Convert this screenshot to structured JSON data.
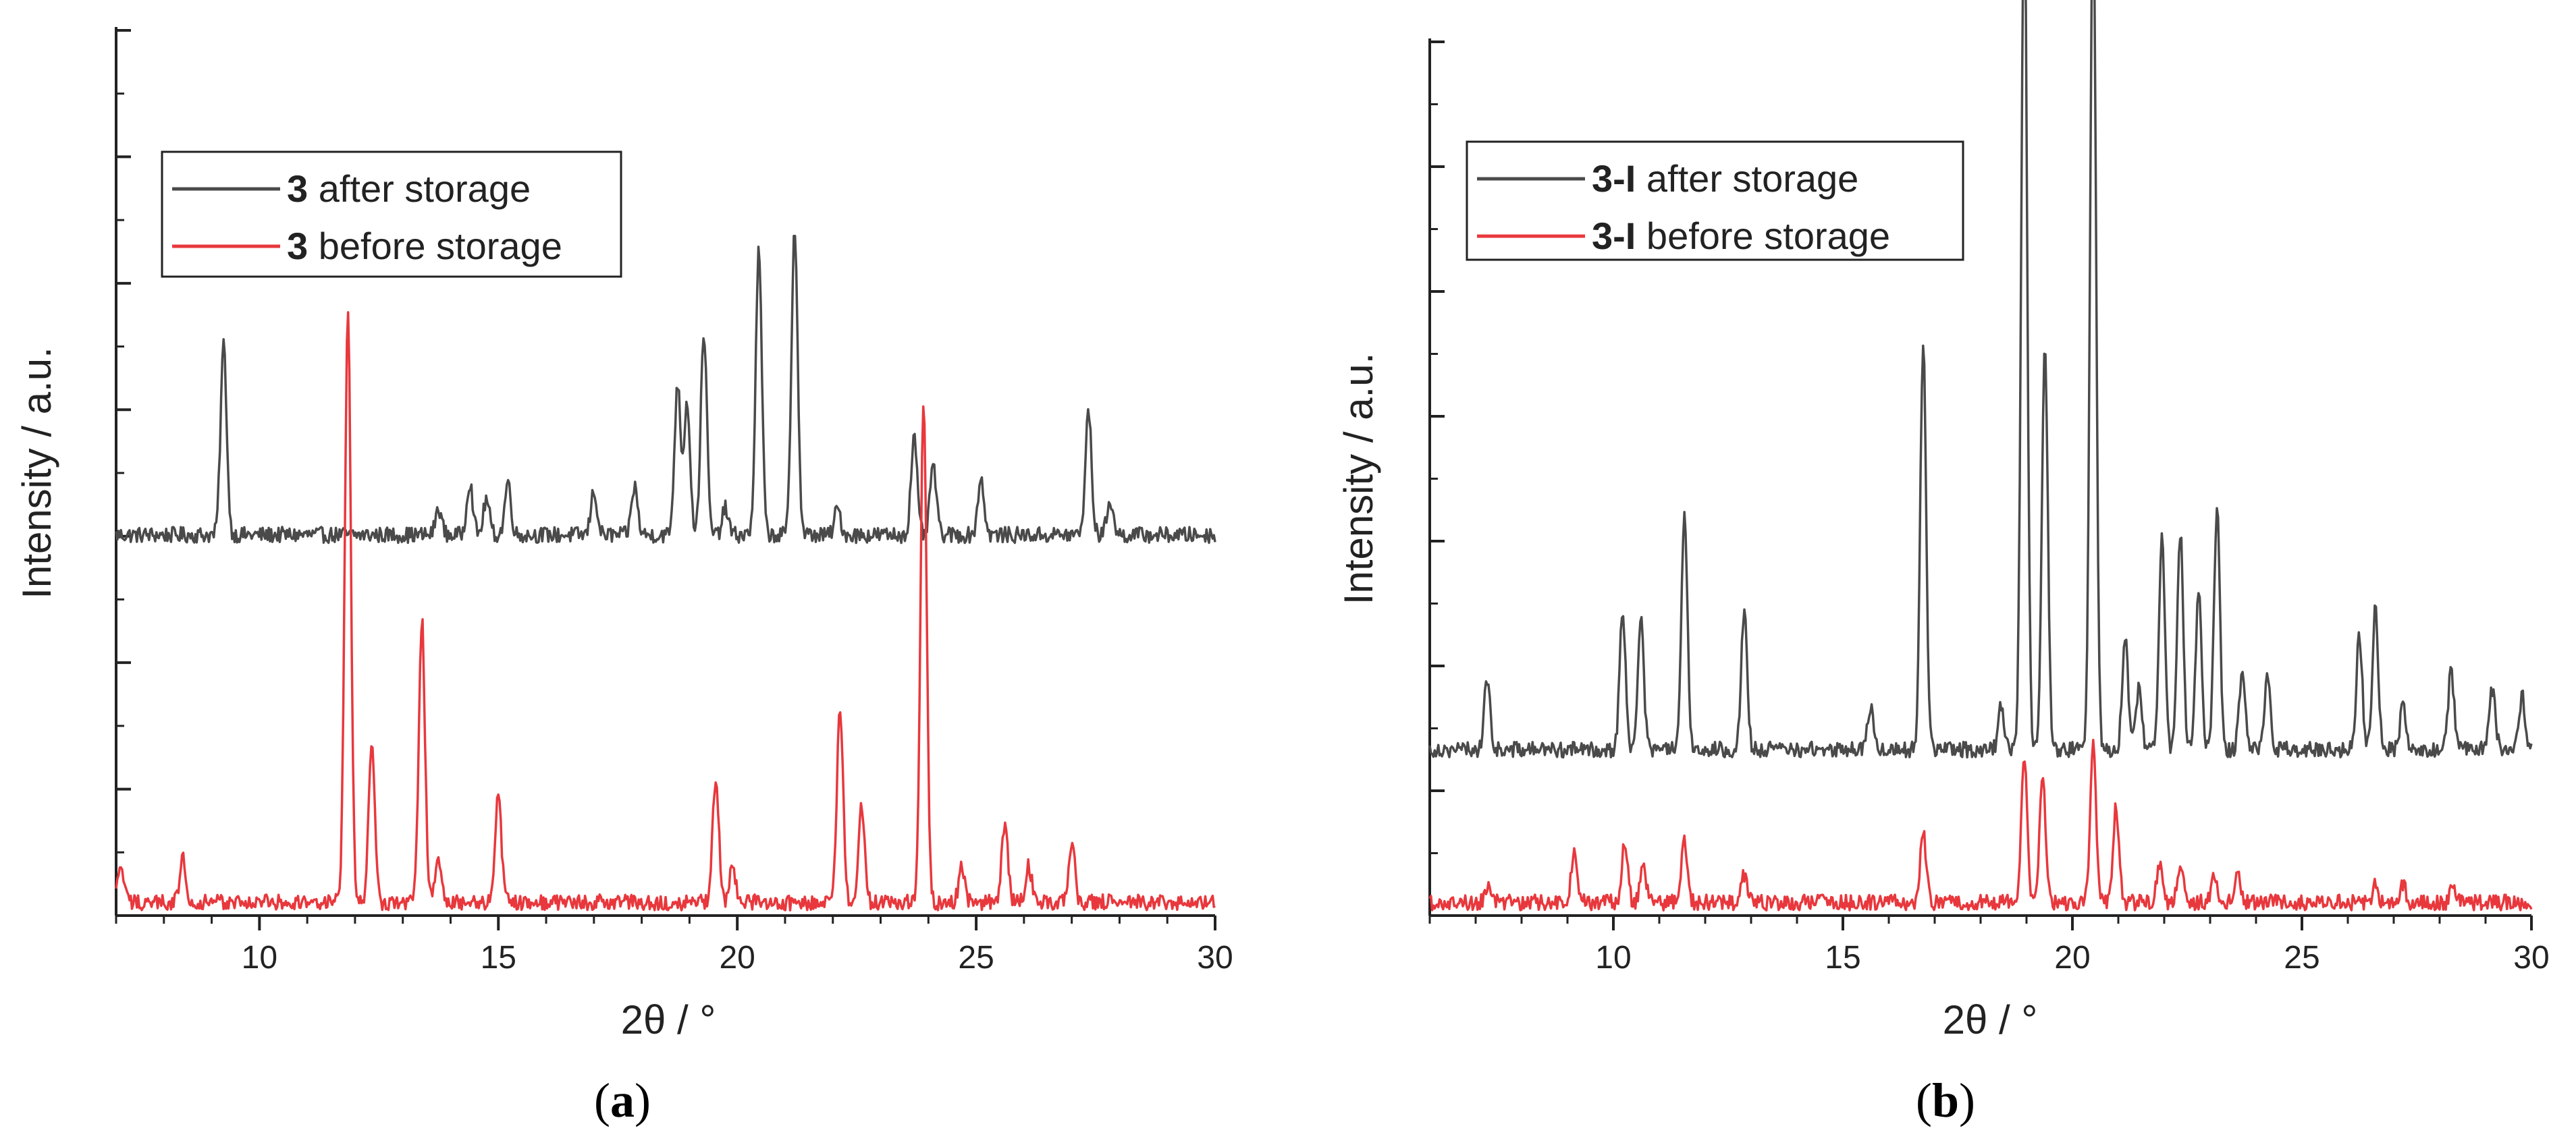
{
  "colors": {
    "after": "#4a4a4a",
    "before": "#e8383d",
    "axis": "#222222"
  },
  "panels": [
    {
      "label_open": "(",
      "label_letter": "a",
      "label_close": ")",
      "chart_data": {
        "type": "line",
        "xlabel": "2θ / °",
        "ylabel": "Intensity / a.u.",
        "xlim": [
          7,
          30
        ],
        "ylim": [
          0,
          1
        ],
        "xticks": [
          "10",
          "15",
          "20",
          "25",
          "30"
        ],
        "legend_position": "top-left",
        "series": [
          {
            "name": "after",
            "bold": "3",
            "label": " after storage",
            "baseline": 0.43,
            "peaks": [
              [
                9.25,
                0.215
              ],
              [
                13.75,
                0.03
              ],
              [
                14.4,
                0.06
              ],
              [
                14.75,
                0.04
              ],
              [
                15.2,
                0.06
              ],
              [
                17.0,
                0.05
              ],
              [
                17.85,
                0.055
              ],
              [
                18.75,
                0.17
              ],
              [
                18.95,
                0.15
              ],
              [
                19.3,
                0.23
              ],
              [
                19.75,
                0.03
              ],
              [
                20.45,
                0.32
              ],
              [
                21.2,
                0.35
              ],
              [
                22.1,
                0.03
              ],
              [
                23.7,
                0.11
              ],
              [
                24.1,
                0.08
              ],
              [
                25.1,
                0.065
              ],
              [
                27.35,
                0.14
              ],
              [
                27.8,
                0.04
              ]
            ]
          },
          {
            "name": "before",
            "bold": "3",
            "label": " before storage",
            "baseline": 0.015,
            "peaks": [
              [
                7.1,
                0.04
              ],
              [
                8.4,
                0.05
              ],
              [
                11.85,
                0.67
              ],
              [
                12.35,
                0.18
              ],
              [
                13.4,
                0.32
              ],
              [
                13.75,
                0.05
              ],
              [
                15.0,
                0.12
              ],
              [
                19.55,
                0.14
              ],
              [
                19.9,
                0.04
              ],
              [
                22.15,
                0.22
              ],
              [
                22.6,
                0.11
              ],
              [
                23.9,
                0.57
              ],
              [
                24.7,
                0.04
              ],
              [
                25.6,
                0.09
              ],
              [
                26.1,
                0.04
              ],
              [
                27.0,
                0.07
              ]
            ]
          }
        ]
      }
    },
    {
      "label_open": "(",
      "label_letter": "b",
      "label_close": ")",
      "chart_data": {
        "type": "line",
        "xlabel": "2θ / °",
        "ylabel": "Intensity / a.u.",
        "xlim": [
          6,
          30
        ],
        "ylim": [
          0,
          1
        ],
        "xticks": [
          "10",
          "15",
          "20",
          "25",
          "30"
        ],
        "legend_position": "top-left",
        "series": [
          {
            "name": "after",
            "bold": "3-I",
            "label": " after storage",
            "baseline": 0.19,
            "peaks": [
              [
                7.25,
                0.08
              ],
              [
                10.2,
                0.16
              ],
              [
                10.6,
                0.15
              ],
              [
                11.55,
                0.27
              ],
              [
                12.85,
                0.16
              ],
              [
                15.6,
                0.05
              ],
              [
                16.75,
                0.47
              ],
              [
                18.45,
                0.05
              ],
              [
                18.95,
                0.99
              ],
              [
                19.4,
                0.47
              ],
              [
                20.45,
                0.99
              ],
              [
                21.15,
                0.13
              ],
              [
                21.45,
                0.07
              ],
              [
                21.95,
                0.25
              ],
              [
                22.35,
                0.25
              ],
              [
                22.75,
                0.18
              ],
              [
                23.15,
                0.28
              ],
              [
                23.7,
                0.09
              ],
              [
                24.25,
                0.09
              ],
              [
                26.25,
                0.13
              ],
              [
                26.6,
                0.16
              ],
              [
                27.2,
                0.05
              ],
              [
                28.25,
                0.09
              ],
              [
                29.15,
                0.07
              ],
              [
                29.8,
                0.06
              ]
            ]
          },
          {
            "name": "before",
            "bold": "3-I",
            "label": " before storage",
            "baseline": 0.015,
            "peaks": [
              [
                7.3,
                0.02
              ],
              [
                9.15,
                0.06
              ],
              [
                10.25,
                0.07
              ],
              [
                10.65,
                0.04
              ],
              [
                11.55,
                0.07
              ],
              [
                12.85,
                0.03
              ],
              [
                16.75,
                0.08
              ],
              [
                18.95,
                0.17
              ],
              [
                19.35,
                0.15
              ],
              [
                20.45,
                0.18
              ],
              [
                20.95,
                0.11
              ],
              [
                21.9,
                0.04
              ],
              [
                22.35,
                0.04
              ],
              [
                23.1,
                0.03
              ],
              [
                23.6,
                0.03
              ],
              [
                26.6,
                0.02
              ],
              [
                27.2,
                0.02
              ],
              [
                28.3,
                0.02
              ]
            ]
          }
        ]
      }
    }
  ]
}
